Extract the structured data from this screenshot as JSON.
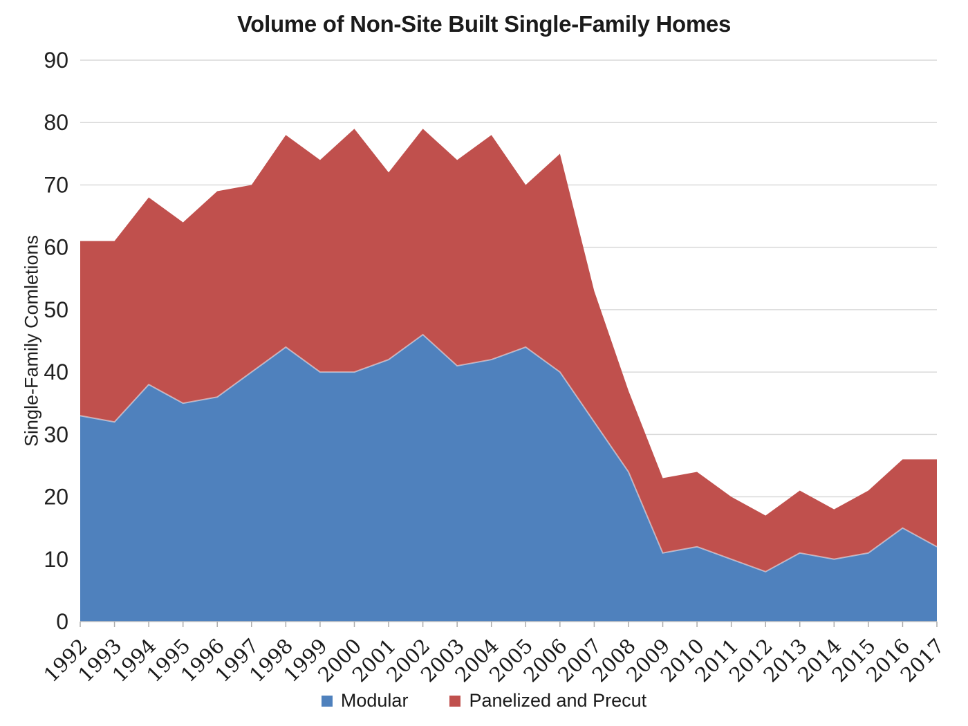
{
  "chart_data": {
    "type": "area",
    "stacked": true,
    "title": "Volume of Non-Site Built Single-Family Homes",
    "ylabel": "Single-Family Comletions",
    "xlabel": "",
    "categories": [
      "1992",
      "1993",
      "1994",
      "1995",
      "1996",
      "1997",
      "1998",
      "1999",
      "2000",
      "2001",
      "2002",
      "2003",
      "2004",
      "2005",
      "2006",
      "2007",
      "2008",
      "2009",
      "2010",
      "2011",
      "2012",
      "2013",
      "2014",
      "2015",
      "2016",
      "2017"
    ],
    "series": [
      {
        "name": "Modular",
        "color": "#4F81BD",
        "values": [
          33,
          32,
          38,
          35,
          36,
          40,
          44,
          40,
          40,
          42,
          46,
          41,
          42,
          44,
          40,
          32,
          24,
          11,
          12,
          10,
          8,
          11,
          10,
          11,
          15,
          12
        ]
      },
      {
        "name": "Panelized and Precut",
        "color": "#C0504D",
        "values": [
          28,
          29,
          30,
          29,
          33,
          30,
          34,
          34,
          39,
          30,
          33,
          33,
          36,
          26,
          35,
          21,
          13,
          12,
          12,
          10,
          9,
          10,
          8,
          10,
          11,
          14
        ]
      }
    ],
    "ylim": [
      0,
      90
    ],
    "ytick_step": 10,
    "grid": "horizontal-gridlines",
    "legend_position": "bottom-center",
    "gridline_color": "#D9D9D9",
    "text_color": "#1A1A1A"
  }
}
